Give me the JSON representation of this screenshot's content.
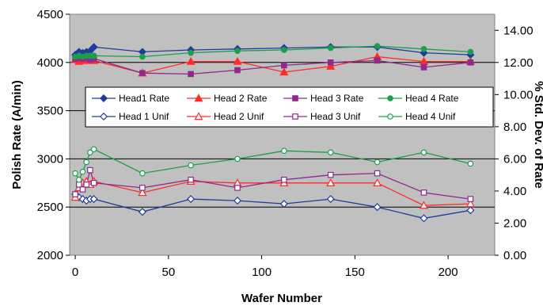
{
  "chart_data": {
    "type": "line",
    "xlabel": "Wafer Number",
    "ylabel": "Polish Rate (A/min)",
    "y2label": "% Std. Dev. of Rate",
    "xlim": [
      -3,
      225
    ],
    "ylim": [
      2000,
      4500
    ],
    "y2lim": [
      0,
      15
    ],
    "x_ticks": [
      "0",
      "50",
      "100",
      "150",
      "200"
    ],
    "y_ticks": [
      "2000",
      "2500",
      "3000",
      "3500",
      "4000",
      "4500"
    ],
    "y2_ticks": [
      "0.00",
      "2.00",
      "4.00",
      "6.00",
      "8.00",
      "10.00",
      "12.00",
      "14.00"
    ],
    "grid": "horizontal",
    "plot_background": "#c0c0c0",
    "legend_position": "center",
    "series": [
      {
        "name": "Head1 Rate",
        "axis": "left",
        "marker": "diamond",
        "filled": true,
        "color": "#1f3c9a",
        "x": [
          0,
          2,
          4,
          6,
          8,
          10,
          36,
          62,
          87,
          112,
          137,
          162,
          187,
          212
        ],
        "y": [
          4080,
          4110,
          4100,
          4110,
          4120,
          4160,
          4110,
          4130,
          4140,
          4150,
          4160,
          4160,
          4100,
          4080
        ]
      },
      {
        "name": "Head 2 Rate",
        "axis": "left",
        "marker": "triangle",
        "filled": true,
        "color": "#ff2a2a",
        "x": [
          0,
          2,
          4,
          6,
          8,
          10,
          36,
          62,
          87,
          112,
          137,
          162,
          187,
          212
        ],
        "y": [
          4030,
          4010,
          4020,
          4030,
          4020,
          4020,
          3890,
          4010,
          4010,
          3900,
          3960,
          4060,
          4010,
          4010
        ]
      },
      {
        "name": "Head 3 Rate",
        "axis": "left",
        "marker": "square",
        "filled": true,
        "color": "#8e2a8e",
        "x": [
          0,
          2,
          4,
          6,
          8,
          10,
          36,
          62,
          87,
          112,
          137,
          162,
          187,
          212
        ],
        "y": [
          4040,
          4050,
          4040,
          4050,
          4030,
          4040,
          3890,
          3880,
          3920,
          3970,
          4000,
          4020,
          3950,
          4000
        ]
      },
      {
        "name": "Head 4 Rate",
        "axis": "left",
        "marker": "circle",
        "filled": true,
        "color": "#1aa04a",
        "x": [
          0,
          2,
          4,
          6,
          8,
          10,
          36,
          62,
          87,
          112,
          137,
          162,
          187,
          212
        ],
        "y": [
          4060,
          4070,
          4060,
          4070,
          4070,
          4070,
          4060,
          4100,
          4120,
          4130,
          4150,
          4170,
          4140,
          4110
        ]
      },
      {
        "name": "Head 1 Unif",
        "axis": "right",
        "marker": "diamond",
        "filled": false,
        "color": "#1f3c9a",
        "x": [
          0,
          2,
          4,
          6,
          8,
          10,
          36,
          62,
          87,
          112,
          137,
          162,
          187,
          212
        ],
        "y": [
          3.8,
          3.6,
          3.5,
          3.4,
          3.5,
          3.5,
          2.7,
          3.5,
          3.4,
          3.2,
          3.5,
          3.0,
          2.3,
          2.8
        ]
      },
      {
        "name": "Head 2 Unif",
        "axis": "right",
        "marker": "triangle",
        "filled": false,
        "color": "#ff2a2a",
        "x": [
          0,
          2,
          4,
          6,
          8,
          10,
          36,
          62,
          87,
          112,
          137,
          162,
          187,
          212
        ],
        "y": [
          3.6,
          4.2,
          4.5,
          4.6,
          4.4,
          4.6,
          3.9,
          4.6,
          4.5,
          4.5,
          4.5,
          4.5,
          3.1,
          3.2
        ]
      },
      {
        "name": "Head 3 Unif",
        "axis": "right",
        "marker": "square",
        "filled": false,
        "color": "#8e2a8e",
        "x": [
          0,
          2,
          4,
          6,
          8,
          10,
          36,
          62,
          87,
          112,
          137,
          162,
          187,
          212
        ],
        "y": [
          3.8,
          4.4,
          4.1,
          4.4,
          5.3,
          4.5,
          4.2,
          4.7,
          4.2,
          4.7,
          5.0,
          5.1,
          3.9,
          3.5
        ]
      },
      {
        "name": "Head 4 Unif",
        "axis": "right",
        "marker": "circle",
        "filled": false,
        "color": "#1aa04a",
        "x": [
          0,
          2,
          4,
          6,
          8,
          10,
          36,
          62,
          87,
          112,
          137,
          162,
          187,
          212
        ],
        "y": [
          5.1,
          4.7,
          5.2,
          5.8,
          6.4,
          6.6,
          5.1,
          5.6,
          6.0,
          6.5,
          6.4,
          5.8,
          6.4,
          5.7
        ]
      }
    ]
  }
}
